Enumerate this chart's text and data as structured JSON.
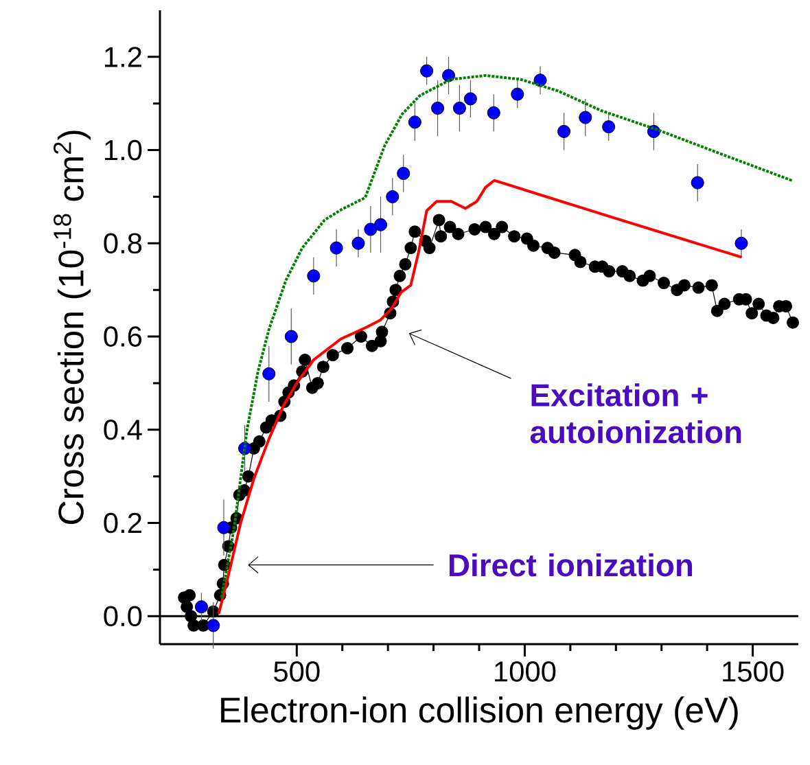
{
  "chart_data": {
    "type": "line",
    "xlabel": "Electron-ion collision energy (eV)",
    "ylabel": "Cross section (10$^{-18}$ cm$^{2}$)",
    "xlim": [
      200,
      1600
    ],
    "xticks": [
      500,
      1000,
      1500
    ],
    "ylim": [
      -0.06,
      1.3
    ],
    "yticks": [
      {
        "value": 0,
        "label": "0.0"
      },
      0.2,
      0.4,
      0.6,
      0.8,
      {
        "value": 1,
        "label": "1.0"
      },
      1.2
    ],
    "ref_lines": [
      {
        "axis": "y",
        "value": 0,
        "color": "#000000",
        "line_style": "solid"
      }
    ],
    "annotations": [
      "Direct ionization",
      "Excitation + autoionization"
    ],
    "series": [
      {
        "color": "#000000",
        "marker": "circle",
        "line_style": "solid",
        "x": [
          253,
          259,
          265,
          268,
          274,
          295,
          317,
          332,
          338,
          341,
          350,
          356,
          368,
          374,
          385,
          394,
          406,
          418,
          433,
          445,
          464,
          473,
          482,
          494,
          512,
          518,
          534,
          546,
          558,
          579,
          611,
          641,
          665,
          684,
          687,
          705,
          711,
          717,
          726,
          738,
          750,
          759,
          782,
          791,
          812,
          816,
          836,
          854,
          890,
          914,
          933,
          950,
          977,
          1005,
          1019,
          1050,
          1065,
          1110,
          1122,
          1154,
          1170,
          1185,
          1214,
          1230,
          1259,
          1274,
          1305,
          1334,
          1350,
          1381,
          1410,
          1422,
          1438,
          1470,
          1485,
          1498,
          1513,
          1530,
          1545,
          1558,
          1573,
          1588
        ],
        "values": [
          0.04,
          0.02,
          0.045,
          0.0,
          -0.02,
          -0.02,
          0.01,
          0.045,
          0.07,
          0.11,
          0.15,
          0.19,
          0.21,
          0.26,
          0.27,
          0.3,
          0.36,
          0.375,
          0.405,
          0.42,
          0.43,
          0.46,
          0.48,
          0.495,
          0.525,
          0.55,
          0.49,
          0.5,
          0.535,
          0.56,
          0.575,
          0.6,
          0.58,
          0.59,
          0.61,
          0.65,
          0.675,
          0.7,
          0.73,
          0.755,
          0.79,
          0.825,
          0.805,
          0.79,
          0.85,
          0.815,
          0.835,
          0.82,
          0.83,
          0.835,
          0.82,
          0.835,
          0.815,
          0.81,
          0.795,
          0.79,
          0.78,
          0.775,
          0.76,
          0.75,
          0.75,
          0.74,
          0.74,
          0.73,
          0.72,
          0.73,
          0.715,
          0.7,
          0.71,
          0.705,
          0.71,
          0.655,
          0.67,
          0.68,
          0.68,
          0.65,
          0.67,
          0.645,
          0.64,
          0.665,
          0.665,
          0.63
        ]
      },
      {
        "type": "scatter",
        "color": "#0000ff",
        "marker": "circle",
        "x": [
          291,
          317,
          340,
          386,
          439,
          488,
          537,
          587,
          635,
          662,
          684,
          710,
          734,
          759,
          785,
          809,
          833,
          857,
          881,
          932,
          984,
          1034,
          1086,
          1133,
          1184,
          1283,
          1379,
          1475
        ],
        "values": [
          0.02,
          -0.02,
          0.19,
          0.36,
          0.52,
          0.6,
          0.73,
          0.79,
          0.8,
          0.83,
          0.84,
          0.9,
          0.95,
          1.06,
          1.17,
          1.09,
          1.16,
          1.09,
          1.11,
          1.08,
          1.12,
          1.15,
          1.04,
          1.07,
          1.05,
          1.04,
          0.93,
          0.8
        ],
        "errors": [
          0.03,
          0.05,
          0.06,
          0.05,
          0.06,
          0.06,
          0.04,
          0.04,
          0.03,
          0.05,
          0.06,
          0.04,
          0.04,
          0.04,
          0.03,
          0.06,
          0.04,
          0.05,
          0.04,
          0.04,
          0.03,
          0.03,
          0.04,
          0.04,
          0.03,
          0.04,
          0.04,
          0.03
        ]
      },
      {
        "color": "#ff0000",
        "marker": "none",
        "line_style": "solid",
        "x": [
          329,
          353,
          377,
          406,
          439,
          470,
          500,
          537,
          597,
          653,
          683,
          708,
          729,
          750,
          767,
          785,
          807,
          839,
          870,
          895,
          914,
          933,
          1205,
          1476
        ],
        "values": [
          0.005,
          0.1,
          0.2,
          0.295,
          0.38,
          0.45,
          0.5,
          0.55,
          0.595,
          0.62,
          0.635,
          0.66,
          0.695,
          0.71,
          0.78,
          0.87,
          0.89,
          0.89,
          0.875,
          0.89,
          0.92,
          0.935,
          0.852,
          0.77
        ]
      },
      {
        "color": "#008000",
        "marker": "none",
        "line_style": "dotted",
        "x": [
          335,
          362,
          391,
          415,
          439,
          476,
          512,
          561,
          599,
          650,
          693,
          731,
          770,
          839,
          914,
          990,
          1073,
          1167,
          1293,
          1419,
          1588
        ],
        "values": [
          0.04,
          0.185,
          0.4,
          0.525,
          0.615,
          0.72,
          0.79,
          0.85,
          0.873,
          0.898,
          1.01,
          1.077,
          1.117,
          1.152,
          1.16,
          1.152,
          1.127,
          1.085,
          1.043,
          0.996,
          0.934
        ]
      }
    ]
  }
}
